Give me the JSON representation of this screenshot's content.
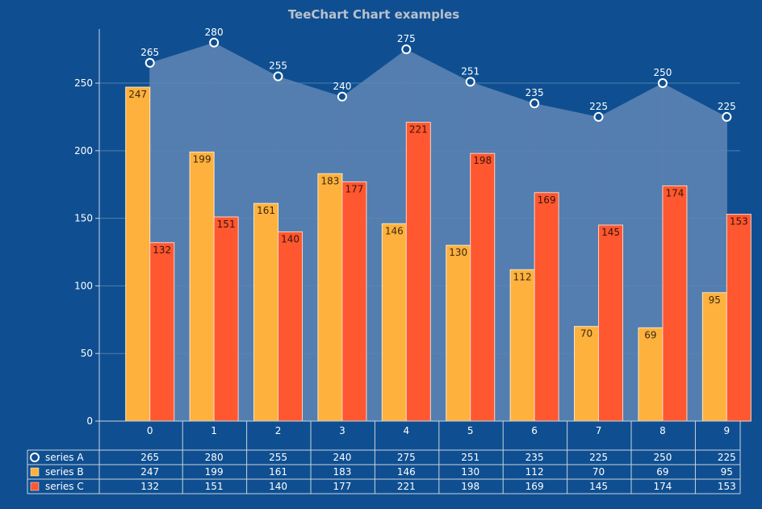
{
  "title": "TeeChart Chart examples",
  "colors": {
    "background": "#0f4f91",
    "series_a_area": "#5f86b4",
    "series_b": "#ffb13d",
    "series_c": "#ff5730",
    "text": "#ffffff",
    "title": "#b9c1cc"
  },
  "chart_data": {
    "type": "bar",
    "title": "TeeChart Chart examples",
    "categories": [
      "0",
      "1",
      "2",
      "3",
      "4",
      "5",
      "6",
      "7",
      "8",
      "9"
    ],
    "ylim": [
      0,
      290
    ],
    "yticks": [
      0,
      50,
      100,
      150,
      200,
      250
    ],
    "grid": true,
    "series": [
      {
        "name": "series A",
        "type": "area",
        "marker": "circle",
        "values": [
          265,
          280,
          255,
          240,
          275,
          251,
          235,
          225,
          250,
          225
        ]
      },
      {
        "name": "series B",
        "type": "bar",
        "values": [
          247,
          199,
          161,
          183,
          146,
          130,
          112,
          70,
          69,
          95
        ]
      },
      {
        "name": "series C",
        "type": "bar",
        "values": [
          132,
          151,
          140,
          177,
          221,
          198,
          169,
          145,
          174,
          153
        ]
      }
    ],
    "data_table": true
  }
}
